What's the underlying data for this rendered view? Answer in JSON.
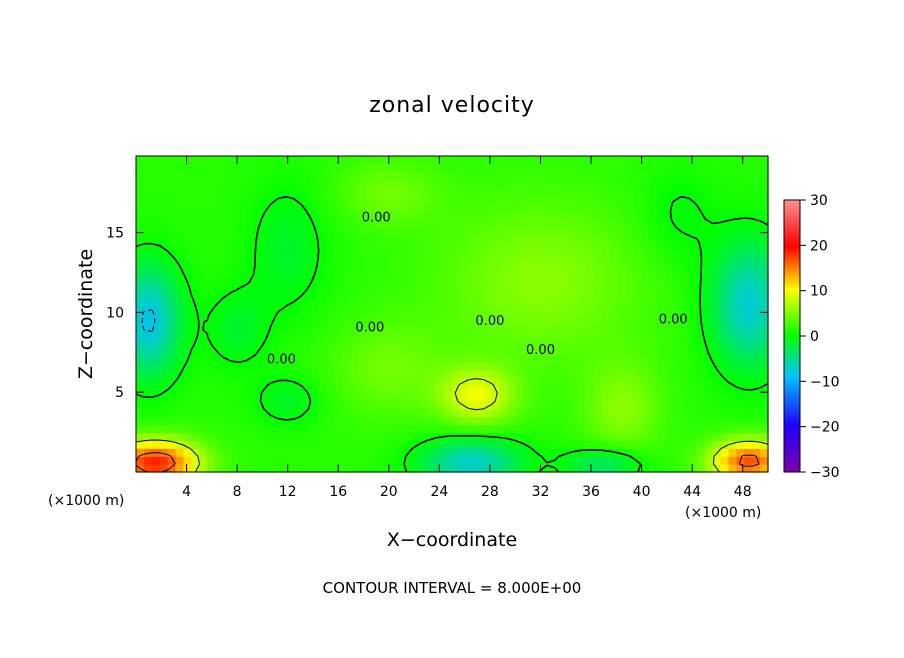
{
  "chart_data": {
    "type": "heatmap",
    "title": "zonal velocity",
    "xlabel": "X−coordinate",
    "ylabel": "Z−coordinate",
    "x_unit_left": "(×1000 m)",
    "x_unit_right": "(×1000 m)",
    "footer": "CONTOUR INTERVAL = 8.000E+00",
    "xlim": [
      0,
      50
    ],
    "ylim": [
      0,
      19.8
    ],
    "x_ticks": [
      "4",
      "8",
      "12",
      "16",
      "20",
      "24",
      "28",
      "32",
      "36",
      "40",
      "44",
      "48"
    ],
    "x_tick_values": [
      4,
      8,
      12,
      16,
      20,
      24,
      28,
      32,
      36,
      40,
      44,
      48
    ],
    "y_ticks": [
      "5",
      "10",
      "15"
    ],
    "y_tick_values": [
      5,
      10,
      15
    ],
    "colorbar": {
      "min": -30,
      "max": 30,
      "labels": [
        "30",
        "20",
        "10",
        "0",
        "−10",
        "−20",
        "−30"
      ],
      "label_values": [
        30,
        20,
        10,
        0,
        -10,
        -20,
        -30
      ],
      "colors": [
        "#7b00a8",
        "#2000ff",
        "#00c0ff",
        "#00ff00",
        "#ffff00",
        "#ff0000",
        "#ff9090"
      ]
    },
    "contour_interval": 8,
    "contour_labels": [
      "0.00",
      "0.00",
      "0.00",
      "0.00",
      "0.00",
      "0.00"
    ],
    "features": [
      {
        "x": 1.0,
        "z": 9.5,
        "sx": 2.5,
        "sz": 3.5,
        "value": -10
      },
      {
        "x": 48.5,
        "z": 10.5,
        "sx": 3.0,
        "sz": 4.0,
        "value": -9
      },
      {
        "x": 1.5,
        "z": 0.6,
        "sx": 3.5,
        "sz": 1.4,
        "value": 18
      },
      {
        "x": 48.5,
        "z": 0.7,
        "sx": 3.0,
        "sz": 1.3,
        "value": 16
      },
      {
        "x": 26.5,
        "z": 0.6,
        "sx": 4.0,
        "sz": 1.5,
        "value": -9
      },
      {
        "x": 37.0,
        "z": 0.5,
        "sx": 3.0,
        "sz": 1.0,
        "value": -6
      },
      {
        "x": 27.0,
        "z": 4.8,
        "sx": 3.0,
        "sz": 1.8,
        "value": 8
      },
      {
        "x": 32.0,
        "z": 12.0,
        "sx": 8.0,
        "sz": 5.0,
        "value": 4
      },
      {
        "x": 20.0,
        "z": 6.5,
        "sx": 4.5,
        "sz": 3.0,
        "value": 3
      },
      {
        "x": 12.0,
        "z": 14.0,
        "sx": 3.0,
        "sz": 4.0,
        "value": -3
      },
      {
        "x": 8.0,
        "z": 9.0,
        "sx": 2.5,
        "sz": 2.5,
        "value": -3
      },
      {
        "x": 12.0,
        "z": 4.5,
        "sx": 2.5,
        "sz": 1.5,
        "value": -3
      },
      {
        "x": 38.5,
        "z": 4.0,
        "sx": 3.0,
        "sz": 3.0,
        "value": 4
      },
      {
        "x": 43.0,
        "z": 16.0,
        "sx": 3.0,
        "sz": 3.0,
        "value": -2
      },
      {
        "x": 20.0,
        "z": 17.5,
        "sx": 4.0,
        "sz": 2.0,
        "value": 3
      }
    ]
  }
}
